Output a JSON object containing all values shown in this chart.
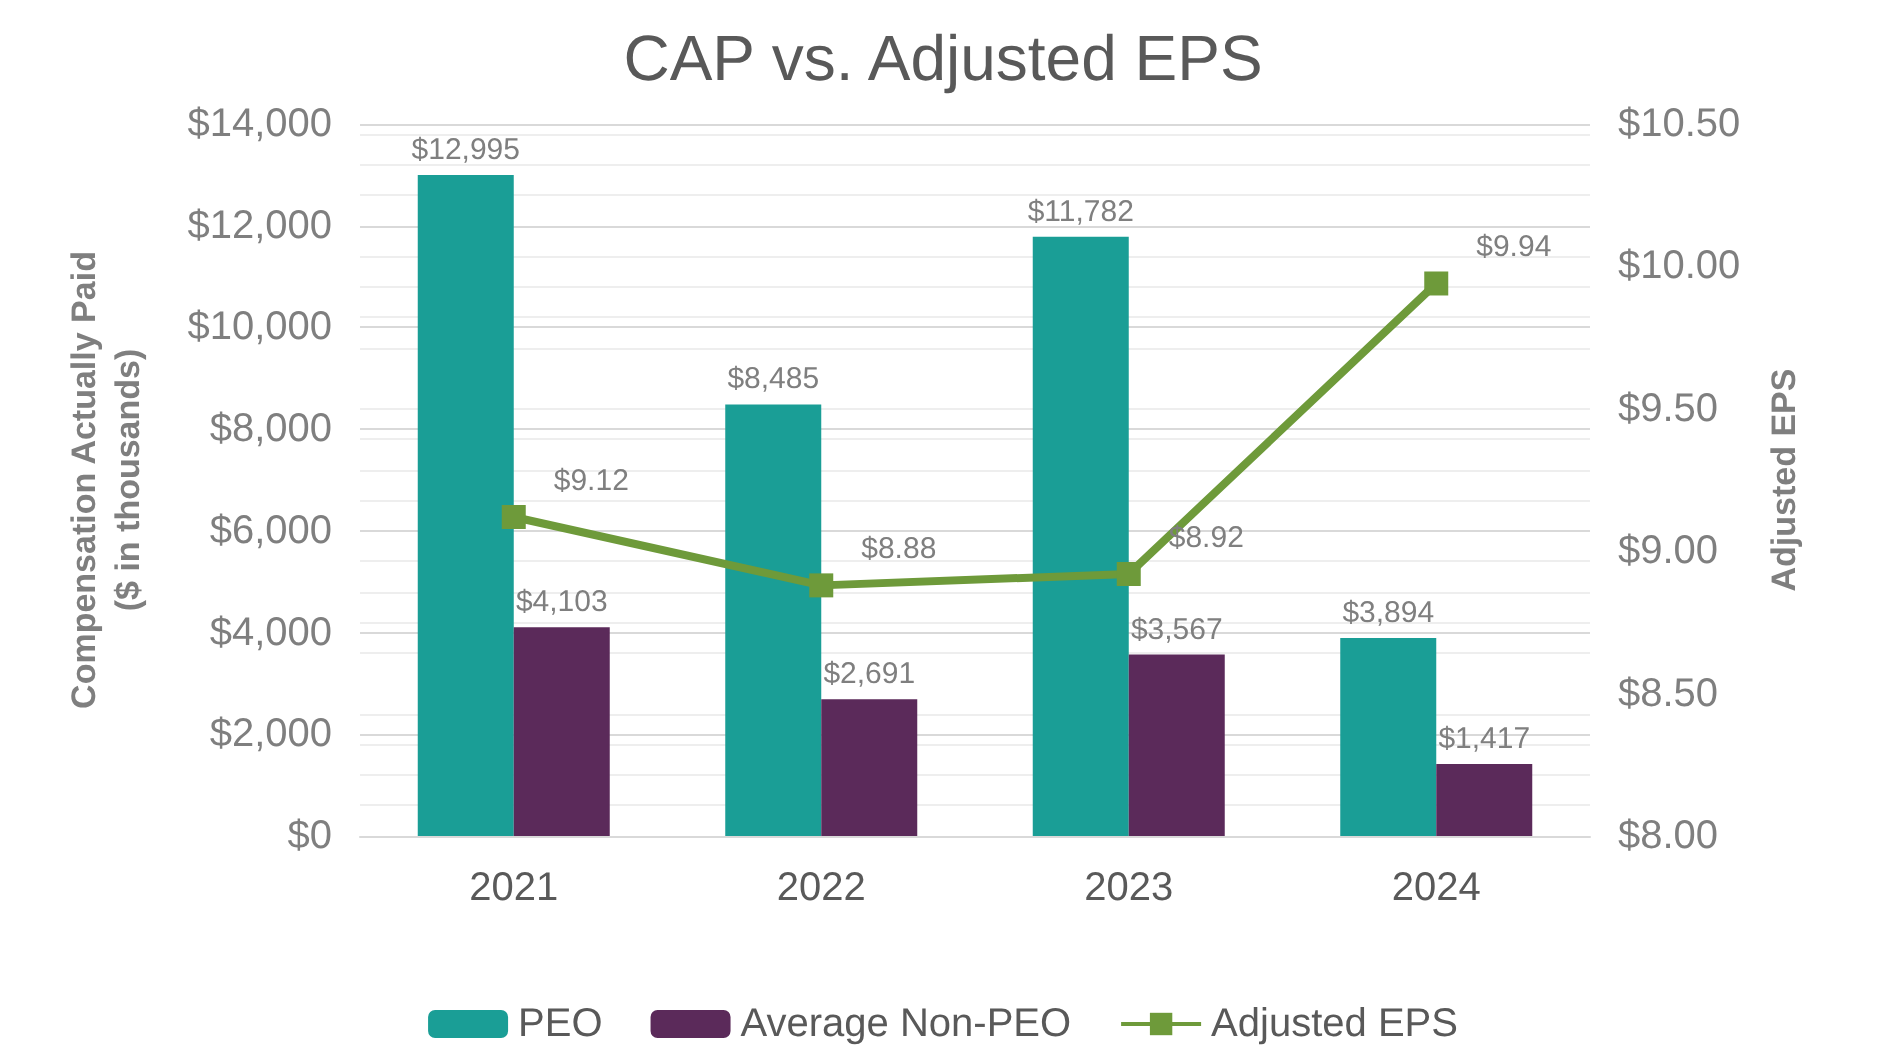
{
  "chart_data": {
    "type": "bar",
    "title": "CAP vs. Adjusted EPS",
    "ylabel": "Compensation Actually Paid\n($ in thousands)",
    "y2label": "Adjusted EPS",
    "categories": [
      "2021",
      "2022",
      "2023",
      "2024"
    ],
    "series": [
      {
        "name": "PEO",
        "color": "#1a9e96",
        "values": [
          12995,
          8485,
          11782,
          3894
        ],
        "value_labels": [
          "$12,995",
          "$8,485",
          "$11,782",
          "$3,894"
        ]
      },
      {
        "name": "Average Non-PEO",
        "color": "#5b2a5a",
        "values": [
          4103,
          2691,
          3567,
          1417
        ],
        "value_labels": [
          "$4,103",
          "$2,691",
          "$3,567",
          "$1,417"
        ]
      },
      {
        "name": "Adjusted EPS",
        "type": "line",
        "axis": "y2",
        "color": "#6e9a3a",
        "marker": "square",
        "values": [
          9.12,
          8.88,
          8.92,
          9.94
        ],
        "value_labels": [
          "$9.12",
          "$8.88",
          "$8.92",
          "$9.94"
        ]
      }
    ],
    "ylim": [
      0,
      14000
    ],
    "yticks": [
      {
        "value": 0,
        "label": "$0"
      },
      {
        "value": 2000,
        "label": "$2,000"
      },
      {
        "value": 4000,
        "label": "$4,000"
      },
      {
        "value": 6000,
        "label": "$6,000"
      },
      {
        "value": 8000,
        "label": "$8,000"
      },
      {
        "value": 10000,
        "label": "$10,000"
      },
      {
        "value": 12000,
        "label": "$12,000"
      },
      {
        "value": 14000,
        "label": "$14,000"
      }
    ],
    "y2lim": [
      8,
      10.5
    ],
    "y2ticks": [
      {
        "value": 8,
        "label": "$8.00"
      },
      {
        "value": 8.5,
        "label": "$8.50"
      },
      {
        "value": 9,
        "label": "$9.00"
      },
      {
        "value": 9.5,
        "label": "$9.50"
      },
      {
        "value": 10,
        "label": "$10.00"
      },
      {
        "value": 10.5,
        "label": "$10.50"
      }
    ],
    "grid": "y",
    "legend": "bottom"
  }
}
